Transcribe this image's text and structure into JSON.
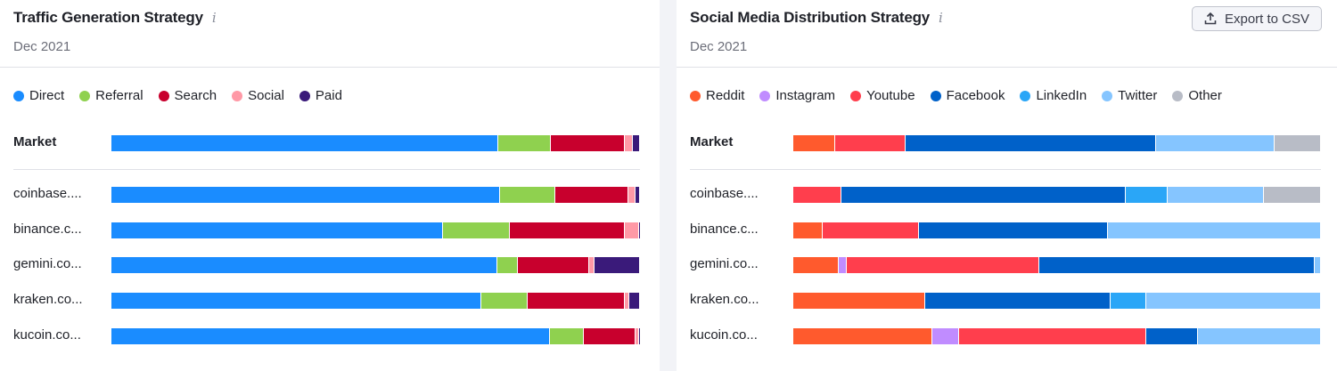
{
  "chart_data": [
    {
      "type": "bar",
      "orientation": "horizontal",
      "stacked": true,
      "normalized": true,
      "title": "Traffic Generation Strategy",
      "subtitle": "Dec 2021",
      "legend_position": "top",
      "categories": [
        "Market",
        "coinbase....",
        "binance.c...",
        "gemini.co...",
        "kraken.co...",
        "kucoin.co..."
      ],
      "series": [
        {
          "name": "Direct",
          "color": "#1a8cff",
          "values": [
            73.2,
            73.6,
            62.7,
            73.0,
            69.9,
            83.0
          ]
        },
        {
          "name": "Referral",
          "color": "#8fd14f",
          "values": [
            9.9,
            10.4,
            12.6,
            3.9,
            8.9,
            6.3
          ]
        },
        {
          "name": "Search",
          "color": "#c8002d",
          "values": [
            14.0,
            13.8,
            21.9,
            13.5,
            18.4,
            9.8
          ]
        },
        {
          "name": "Social",
          "color": "#ff99a6",
          "values": [
            1.5,
            1.3,
            2.7,
            1.0,
            0.7,
            0.7
          ]
        },
        {
          "name": "Paid",
          "color": "#3a1a7a",
          "values": [
            1.4,
            0.9,
            0.1,
            8.6,
            2.1,
            0.2
          ]
        }
      ]
    },
    {
      "type": "bar",
      "orientation": "horizontal",
      "stacked": true,
      "normalized": true,
      "title": "Social Media Distribution Strategy",
      "subtitle": "Dec 2021",
      "legend_position": "top",
      "categories": [
        "Market",
        "coinbase....",
        "binance.c...",
        "gemini.co...",
        "kraken.co...",
        "kucoin.co..."
      ],
      "series": [
        {
          "name": "Reddit",
          "color": "#ff5a2d",
          "values": [
            8.0,
            0.0,
            5.6,
            8.6,
            25.0,
            26.3
          ]
        },
        {
          "name": "Instagram",
          "color": "#c08cff",
          "values": [
            0.0,
            0.0,
            0.0,
            1.5,
            0.0,
            5.2
          ]
        },
        {
          "name": "Youtube",
          "color": "#ff3e4d",
          "values": [
            13.2,
            9.2,
            18.3,
            36.5,
            0.0,
            35.4
          ]
        },
        {
          "name": "Facebook",
          "color": "#0061c9",
          "values": [
            47.6,
            53.8,
            35.8,
            52.3,
            35.1,
            9.8
          ]
        },
        {
          "name": "LinkedIn",
          "color": "#2aa6f7",
          "values": [
            0.0,
            7.9,
            0.0,
            0.0,
            6.8,
            0.0
          ]
        },
        {
          "name": "Twitter",
          "color": "#85c5ff",
          "values": [
            22.5,
            18.3,
            40.3,
            1.1,
            33.1,
            23.3
          ]
        },
        {
          "name": "Other",
          "color": "#b8bcc6",
          "values": [
            8.7,
            10.8,
            0.0,
            0.0,
            0.0,
            0.0
          ]
        }
      ]
    }
  ],
  "panels": {
    "left": {
      "title": "Traffic Generation Strategy",
      "info_icon": "info-icon",
      "date": "Dec 2021"
    },
    "right": {
      "title": "Social Media Distribution Strategy",
      "info_icon": "info-icon",
      "date": "Dec 2021",
      "export_label": "Export to CSV",
      "export_icon": "upload-icon"
    }
  },
  "info_glyph": "i"
}
